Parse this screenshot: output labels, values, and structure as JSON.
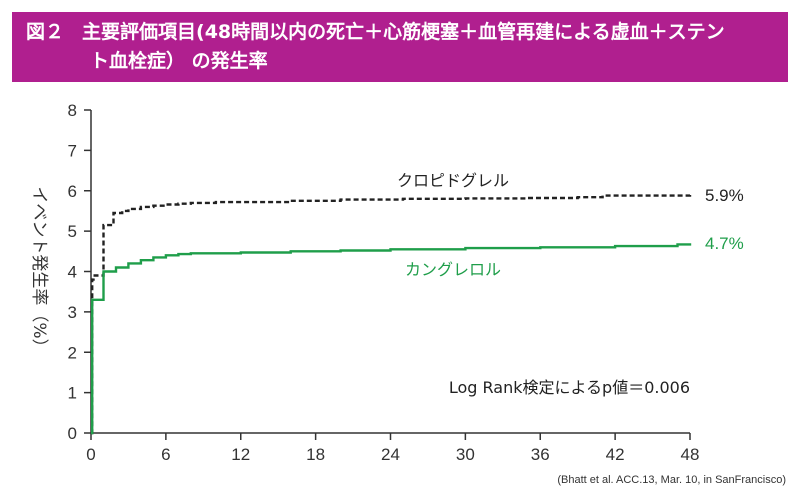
{
  "header": {
    "figure_label": "図２",
    "title_line1": "主要評価項目(48時間以内の死亡＋心筋梗塞＋血管再建による虚血＋ステン",
    "title_line2": "ト血栓症） の発生率"
  },
  "colors": {
    "header_bg": "#b01f8f",
    "clopidogrel": "#222222",
    "cangrelor": "#1f9e4a",
    "axis": "#333333"
  },
  "chart_data": {
    "type": "line",
    "title": "主要評価項目(48時間以内の死亡＋心筋梗塞＋血管再建による虚血＋ステント血栓症） の発生率",
    "ylabel": "イベント発生率（%）",
    "xlabel": "",
    "xlim": [
      0,
      48
    ],
    "ylim": [
      0,
      8
    ],
    "xticks": [
      0,
      6,
      12,
      18,
      24,
      30,
      36,
      42,
      48
    ],
    "yticks": [
      0,
      1,
      2,
      3,
      4,
      5,
      6,
      7,
      8
    ],
    "grid": false,
    "series": [
      {
        "name": "クロピドグレル",
        "style": "dashed",
        "color": "#222222",
        "end_label": "5.9%",
        "x": [
          0,
          0.1,
          0.2,
          1,
          1.8,
          2.5,
          3,
          4,
          5,
          6,
          7,
          8,
          10,
          16,
          20,
          25,
          30,
          35,
          39,
          41,
          48
        ],
        "y": [
          0,
          3.8,
          3.9,
          5.15,
          5.45,
          5.5,
          5.55,
          5.6,
          5.63,
          5.66,
          5.68,
          5.7,
          5.72,
          5.75,
          5.78,
          5.8,
          5.81,
          5.82,
          5.84,
          5.88,
          5.9
        ]
      },
      {
        "name": "カングレロル",
        "style": "solid",
        "color": "#1f9e4a",
        "end_label": "4.7%",
        "x": [
          0,
          0.1,
          1,
          2,
          3,
          4,
          5,
          6,
          7,
          8,
          12,
          16,
          20,
          24,
          30,
          36,
          42,
          47,
          48
        ],
        "y": [
          0,
          3.3,
          4.0,
          4.1,
          4.2,
          4.28,
          4.35,
          4.4,
          4.43,
          4.45,
          4.47,
          4.5,
          4.52,
          4.55,
          4.58,
          4.6,
          4.63,
          4.67,
          4.7
        ]
      }
    ],
    "annotation": "Log Rank検定によるp値＝0.006"
  },
  "source": "(Bhatt et al. ACC.13, Mar. 10, in SanFrancisco)"
}
